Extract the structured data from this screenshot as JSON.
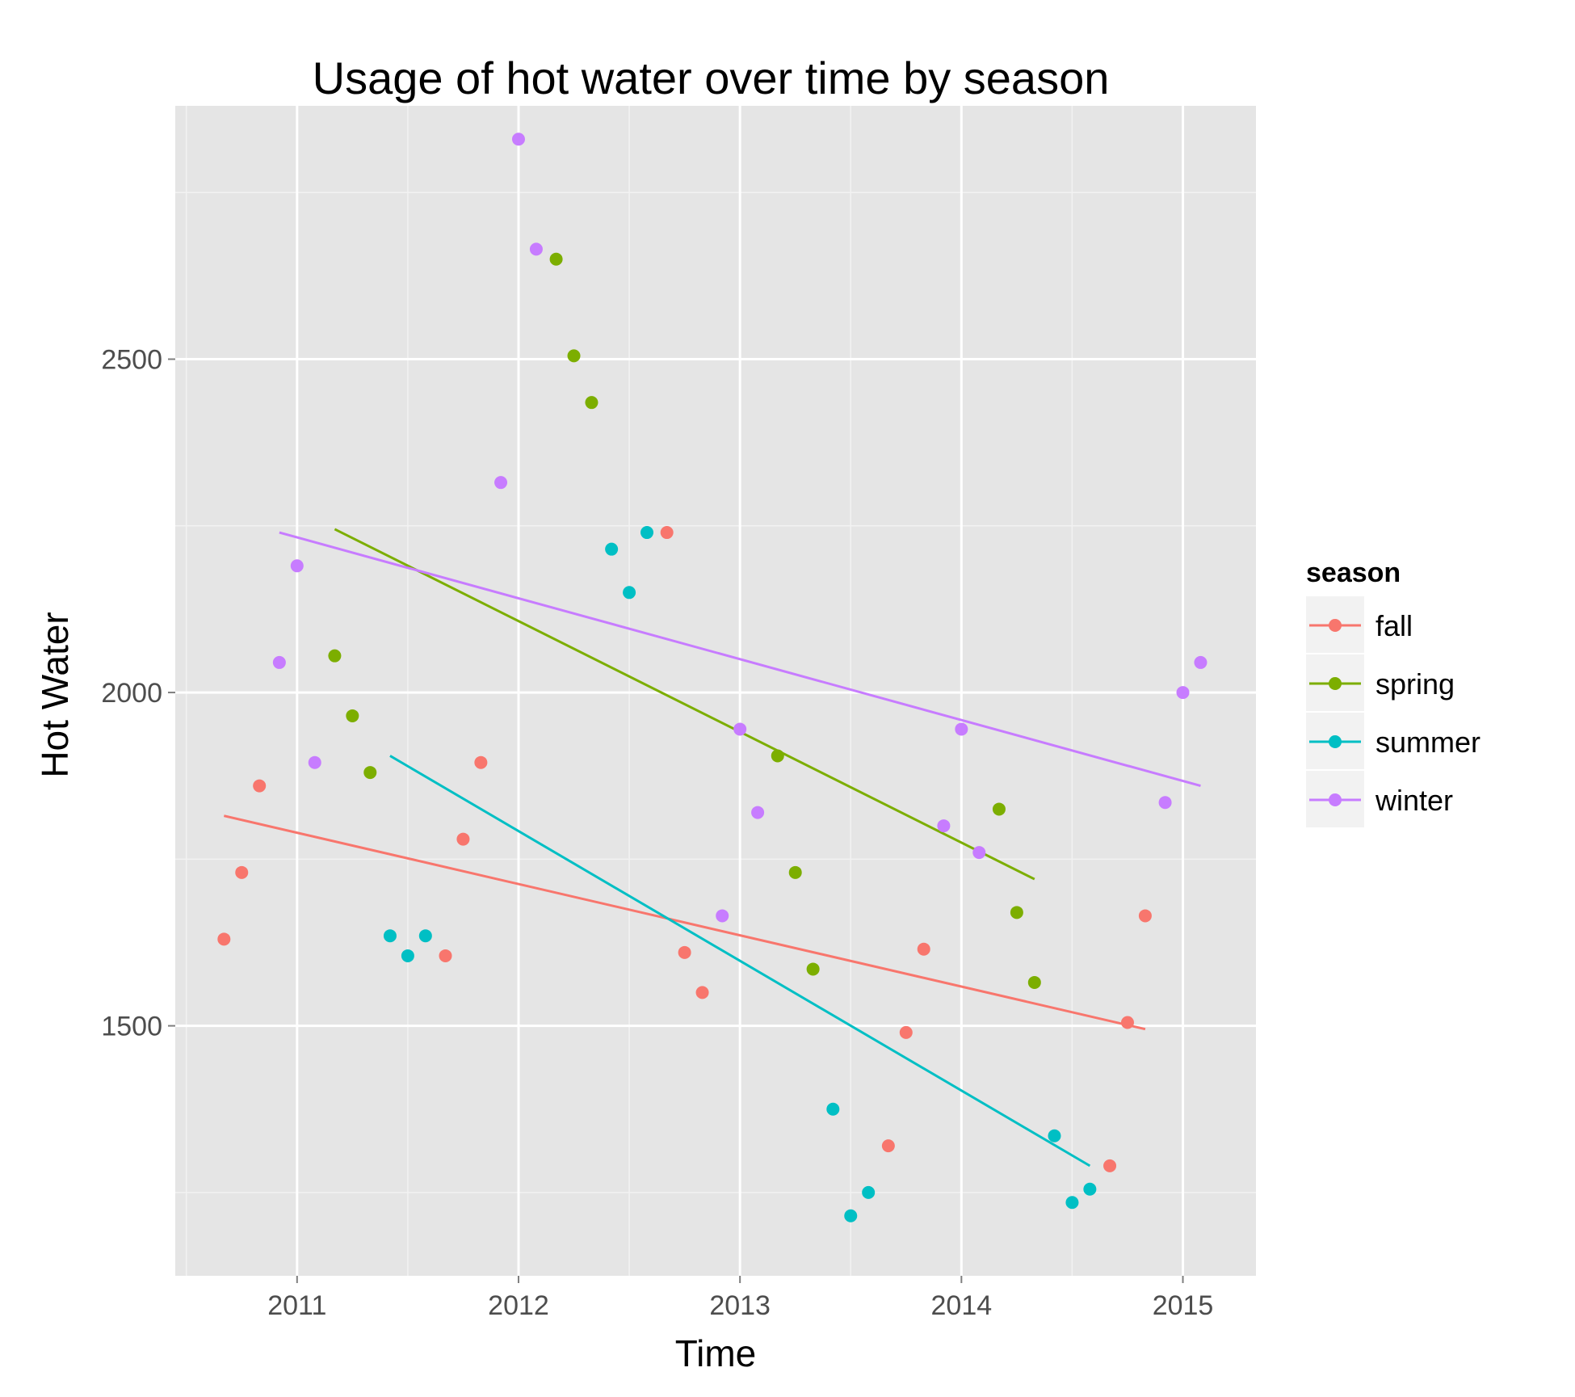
{
  "chart_data": {
    "type": "scatter",
    "title": "Usage of hot water over time by season",
    "xlabel": "Time",
    "ylabel": "Hot Water",
    "xlim": [
      2010.45,
      2015.33
    ],
    "ylim": [
      1125,
      2880
    ],
    "x_ticks": [
      2011,
      2012,
      2013,
      2014,
      2015
    ],
    "y_ticks": [
      1500,
      2000,
      2500
    ],
    "grid": true,
    "legend": {
      "title": "season",
      "position": "right"
    },
    "series": [
      {
        "name": "fall",
        "color": "#F8766D",
        "points": [
          [
            2010.67,
            1630
          ],
          [
            2010.75,
            1730
          ],
          [
            2010.83,
            1860
          ],
          [
            2011.67,
            1605
          ],
          [
            2011.75,
            1780
          ],
          [
            2011.83,
            1895
          ],
          [
            2012.67,
            2240
          ],
          [
            2012.75,
            1610
          ],
          [
            2012.83,
            1550
          ],
          [
            2013.67,
            1320
          ],
          [
            2013.75,
            1490
          ],
          [
            2013.83,
            1615
          ],
          [
            2014.67,
            1290
          ],
          [
            2014.75,
            1505
          ],
          [
            2014.83,
            1665
          ]
        ],
        "trend": [
          [
            2010.67,
            1815
          ],
          [
            2014.83,
            1495
          ]
        ]
      },
      {
        "name": "spring",
        "color": "#7CAE00",
        "points": [
          [
            2011.17,
            2055
          ],
          [
            2011.25,
            1965
          ],
          [
            2011.33,
            1880
          ],
          [
            2012.17,
            2650
          ],
          [
            2012.25,
            2505
          ],
          [
            2012.33,
            2435
          ],
          [
            2013.17,
            1905
          ],
          [
            2013.25,
            1730
          ],
          [
            2013.33,
            1585
          ],
          [
            2014.17,
            1825
          ],
          [
            2014.25,
            1670
          ],
          [
            2014.33,
            1565
          ]
        ],
        "trend": [
          [
            2011.17,
            2245
          ],
          [
            2014.33,
            1720
          ]
        ]
      },
      {
        "name": "summer",
        "color": "#00BFC4",
        "points": [
          [
            2011.42,
            1635
          ],
          [
            2011.5,
            1605
          ],
          [
            2011.58,
            1635
          ],
          [
            2012.42,
            2215
          ],
          [
            2012.5,
            2150
          ],
          [
            2012.58,
            2240
          ],
          [
            2013.42,
            1375
          ],
          [
            2013.5,
            1215
          ],
          [
            2013.58,
            1250
          ],
          [
            2014.42,
            1335
          ],
          [
            2014.5,
            1235
          ],
          [
            2014.58,
            1255
          ]
        ],
        "trend": [
          [
            2011.42,
            1905
          ],
          [
            2014.58,
            1290
          ]
        ]
      },
      {
        "name": "winter",
        "color": "#C77CFF",
        "points": [
          [
            2010.92,
            2045
          ],
          [
            2011.0,
            2190
          ],
          [
            2011.08,
            1895
          ],
          [
            2011.92,
            2315
          ],
          [
            2012.0,
            2830
          ],
          [
            2012.08,
            2665
          ],
          [
            2012.92,
            1665
          ],
          [
            2013.0,
            1945
          ],
          [
            2013.08,
            1820
          ],
          [
            2013.92,
            1800
          ],
          [
            2014.0,
            1945
          ],
          [
            2014.08,
            1760
          ],
          [
            2014.92,
            1835
          ],
          [
            2015.0,
            2000
          ],
          [
            2015.08,
            2045
          ]
        ],
        "trend": [
          [
            2010.92,
            2240
          ],
          [
            2015.08,
            1860
          ]
        ]
      }
    ]
  }
}
